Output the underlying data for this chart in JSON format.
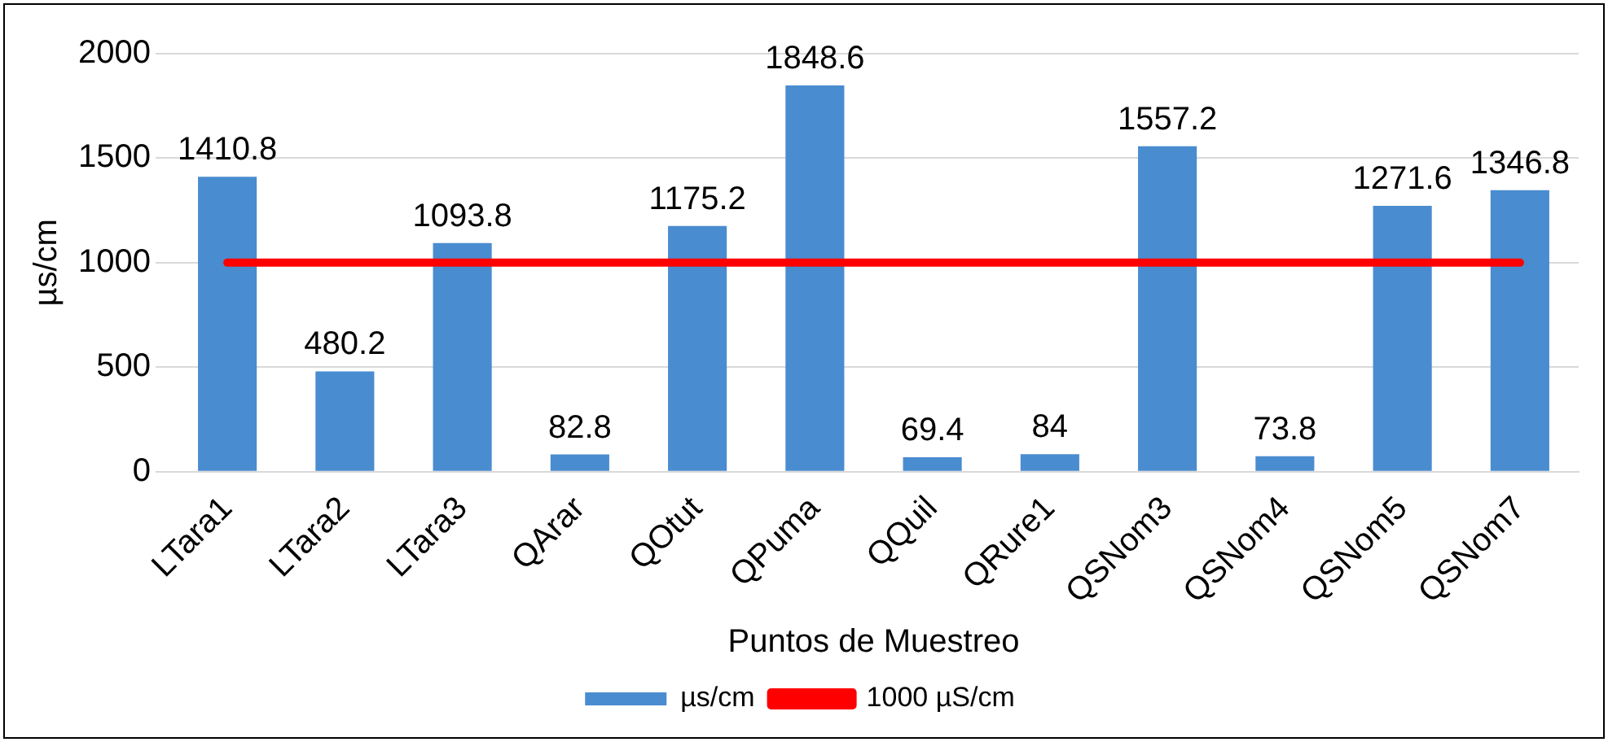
{
  "chart_data": {
    "type": "bar",
    "xlabel": "Puntos de Muestreo",
    "ylabel": "µs/cm",
    "categories": [
      "LTara1",
      "LTara2",
      "LTara3",
      "QArar",
      "QOtut",
      "QPuma",
      "QQuil",
      "QRure1",
      "QSNom3",
      "QSNom4",
      "QSNom5",
      "QSNom7"
    ],
    "series": [
      {
        "name": "µs/cm",
        "color": "#4a8cd0",
        "values": [
          1410.8,
          480.2,
          1093.8,
          82.8,
          1175.2,
          1848.6,
          69.4,
          84,
          1557.2,
          73.8,
          1271.6,
          1346.8
        ],
        "value_labels": [
          "1410.8",
          "480.2",
          "1093.8",
          "82.8",
          "1175.2",
          "1848.6",
          "69.4",
          "84",
          "1557.2",
          "73.8",
          "1271.6",
          "1346.8"
        ]
      },
      {
        "name": "1000 µS/cm",
        "type": "line",
        "color": "#ff0000",
        "values": [
          1000,
          1000,
          1000,
          1000,
          1000,
          1000,
          1000,
          1000,
          1000,
          1000,
          1000,
          1000
        ]
      }
    ],
    "ylim": [
      0,
      2000
    ],
    "yticks": [
      0,
      500,
      1000,
      1500,
      2000
    ],
    "grid": "y",
    "legend": "bottom",
    "marker": "none"
  }
}
